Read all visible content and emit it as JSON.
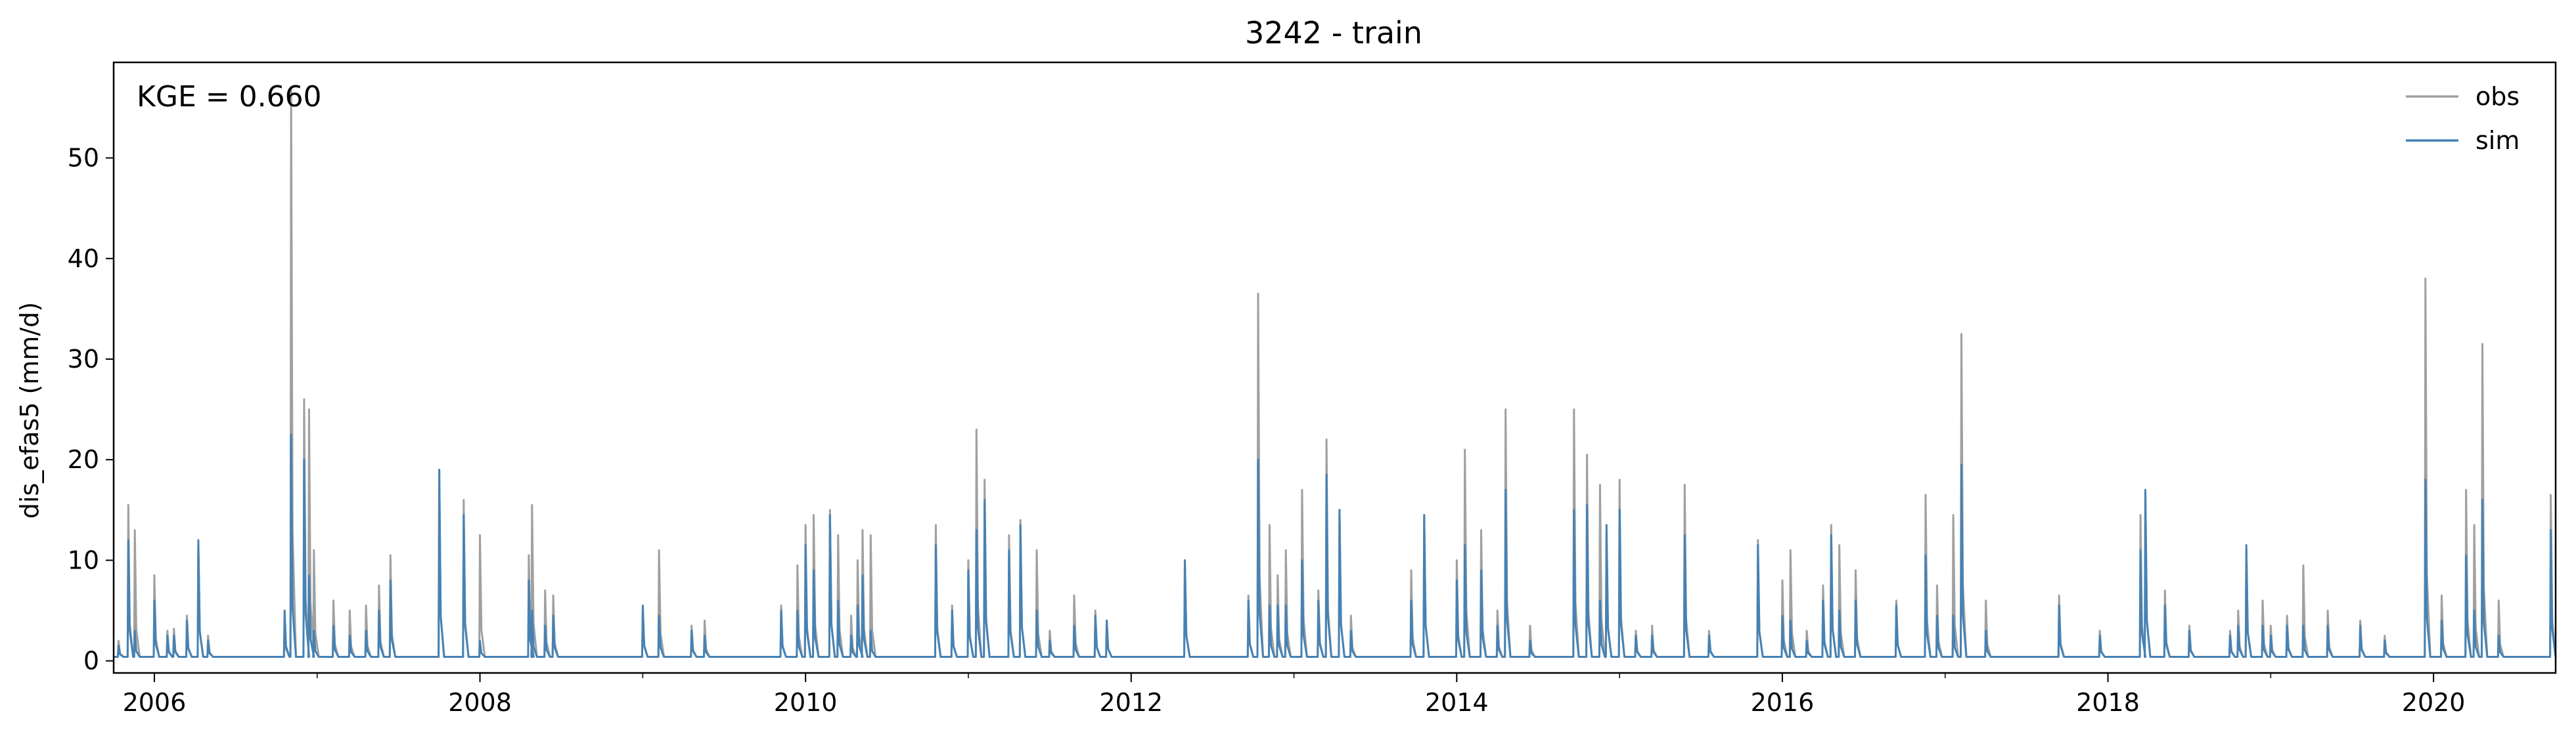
{
  "chart_data": {
    "type": "line",
    "title": "3242 - train",
    "xlabel": "",
    "ylabel": "dis_efas5 (mm/d)",
    "xlim": [
      2005.75,
      2020.75
    ],
    "ylim": [
      -1.2,
      59.5
    ],
    "xticks": [
      2006,
      2008,
      2010,
      2012,
      2014,
      2016,
      2018,
      2020
    ],
    "xtick_labels": [
      "2006",
      "2008",
      "2010",
      "2012",
      "2014",
      "2016",
      "2018",
      "2020"
    ],
    "yticks": [
      0,
      10,
      20,
      30,
      40,
      50
    ],
    "ytick_labels": [
      "0",
      "10",
      "20",
      "30",
      "40",
      "50"
    ],
    "annotation": "KGE = 0.660",
    "legend": {
      "position": "top-right",
      "entries": [
        "obs",
        "sim"
      ]
    },
    "baseline": 0.4,
    "series": [
      {
        "name": "obs",
        "color": "#a0a0a0",
        "peaks": [
          [
            2005.78,
            2.0
          ],
          [
            2005.84,
            15.5
          ],
          [
            2005.88,
            13.0
          ],
          [
            2006.0,
            8.5
          ],
          [
            2006.08,
            3.0
          ],
          [
            2006.12,
            3.2
          ],
          [
            2006.2,
            4.5
          ],
          [
            2006.27,
            11.5
          ],
          [
            2006.33,
            2.5
          ],
          [
            2006.8,
            4.0
          ],
          [
            2006.84,
            57.0
          ],
          [
            2006.92,
            26.0
          ],
          [
            2006.95,
            25.0
          ],
          [
            2006.98,
            11.0
          ],
          [
            2007.1,
            6.0
          ],
          [
            2007.2,
            5.0
          ],
          [
            2007.3,
            5.5
          ],
          [
            2007.38,
            7.5
          ],
          [
            2007.45,
            10.5
          ],
          [
            2007.75,
            19.0
          ],
          [
            2007.9,
            16.0
          ],
          [
            2008.0,
            12.5
          ],
          [
            2008.3,
            10.5
          ],
          [
            2008.32,
            15.5
          ],
          [
            2008.4,
            7.0
          ],
          [
            2008.45,
            6.5
          ],
          [
            2009.0,
            5.0
          ],
          [
            2009.1,
            11.0
          ],
          [
            2009.3,
            3.5
          ],
          [
            2009.38,
            4.0
          ],
          [
            2009.85,
            5.5
          ],
          [
            2009.95,
            9.5
          ],
          [
            2010.0,
            13.5
          ],
          [
            2010.05,
            14.5
          ],
          [
            2010.15,
            15.0
          ],
          [
            2010.2,
            12.5
          ],
          [
            2010.28,
            4.5
          ],
          [
            2010.32,
            10.0
          ],
          [
            2010.35,
            13.0
          ],
          [
            2010.4,
            12.5
          ],
          [
            2010.8,
            13.5
          ],
          [
            2010.9,
            5.5
          ],
          [
            2011.0,
            10.0
          ],
          [
            2011.05,
            23.0
          ],
          [
            2011.1,
            18.0
          ],
          [
            2011.25,
            12.5
          ],
          [
            2011.32,
            14.0
          ],
          [
            2011.42,
            11.0
          ],
          [
            2011.5,
            3.0
          ],
          [
            2011.65,
            6.5
          ],
          [
            2011.78,
            5.0
          ],
          [
            2011.85,
            4.0
          ],
          [
            2012.33,
            10.0
          ],
          [
            2012.72,
            6.5
          ],
          [
            2012.78,
            36.5
          ],
          [
            2012.85,
            13.5
          ],
          [
            2012.9,
            8.5
          ],
          [
            2012.95,
            11.0
          ],
          [
            2013.05,
            17.0
          ],
          [
            2013.15,
            7.0
          ],
          [
            2013.2,
            22.0
          ],
          [
            2013.28,
            15.0
          ],
          [
            2013.35,
            4.5
          ],
          [
            2013.72,
            9.0
          ],
          [
            2013.8,
            14.5
          ],
          [
            2014.0,
            10.0
          ],
          [
            2014.05,
            21.0
          ],
          [
            2014.15,
            13.0
          ],
          [
            2014.25,
            5.0
          ],
          [
            2014.3,
            25.0
          ],
          [
            2014.45,
            3.5
          ],
          [
            2014.72,
            25.0
          ],
          [
            2014.8,
            20.5
          ],
          [
            2014.88,
            17.5
          ],
          [
            2014.92,
            12.5
          ],
          [
            2015.0,
            18.0
          ],
          [
            2015.1,
            3.0
          ],
          [
            2015.2,
            3.5
          ],
          [
            2015.4,
            17.5
          ],
          [
            2015.55,
            3.0
          ],
          [
            2015.85,
            12.0
          ],
          [
            2016.0,
            8.0
          ],
          [
            2016.05,
            11.0
          ],
          [
            2016.15,
            3.0
          ],
          [
            2016.25,
            7.5
          ],
          [
            2016.3,
            13.5
          ],
          [
            2016.35,
            11.5
          ],
          [
            2016.45,
            9.0
          ],
          [
            2016.7,
            6.0
          ],
          [
            2016.88,
            16.5
          ],
          [
            2016.95,
            7.5
          ],
          [
            2017.05,
            14.5
          ],
          [
            2017.1,
            32.5
          ],
          [
            2017.25,
            6.0
          ],
          [
            2017.7,
            6.5
          ],
          [
            2017.95,
            3.0
          ],
          [
            2018.2,
            14.5
          ],
          [
            2018.23,
            16.5
          ],
          [
            2018.35,
            7.0
          ],
          [
            2018.5,
            3.5
          ],
          [
            2018.75,
            3.0
          ],
          [
            2018.8,
            5.0
          ],
          [
            2018.85,
            11.0
          ],
          [
            2018.95,
            6.0
          ],
          [
            2019.0,
            3.5
          ],
          [
            2019.1,
            4.5
          ],
          [
            2019.2,
            9.5
          ],
          [
            2019.35,
            5.0
          ],
          [
            2019.55,
            4.0
          ],
          [
            2019.7,
            2.5
          ],
          [
            2019.95,
            38.0
          ],
          [
            2020.05,
            6.5
          ],
          [
            2020.2,
            17.0
          ],
          [
            2020.25,
            13.5
          ],
          [
            2020.3,
            31.5
          ],
          [
            2020.4,
            6.0
          ],
          [
            2020.72,
            16.5
          ]
        ]
      },
      {
        "name": "sim",
        "color": "#4682b4",
        "peaks": [
          [
            2005.78,
            1.5
          ],
          [
            2005.84,
            12.0
          ],
          [
            2005.88,
            3.0
          ],
          [
            2006.0,
            6.0
          ],
          [
            2006.08,
            2.5
          ],
          [
            2006.12,
            2.5
          ],
          [
            2006.2,
            4.0
          ],
          [
            2006.27,
            12.0
          ],
          [
            2006.33,
            2.0
          ],
          [
            2006.8,
            5.0
          ],
          [
            2006.84,
            22.5
          ],
          [
            2006.92,
            20.0
          ],
          [
            2006.95,
            8.5
          ],
          [
            2006.98,
            3.0
          ],
          [
            2007.1,
            3.5
          ],
          [
            2007.2,
            2.5
          ],
          [
            2007.3,
            3.0
          ],
          [
            2007.38,
            5.0
          ],
          [
            2007.45,
            8.0
          ],
          [
            2007.75,
            19.0
          ],
          [
            2007.9,
            14.5
          ],
          [
            2008.0,
            2.0
          ],
          [
            2008.3,
            8.0
          ],
          [
            2008.32,
            5.0
          ],
          [
            2008.4,
            3.5
          ],
          [
            2008.45,
            4.5
          ],
          [
            2009.0,
            5.5
          ],
          [
            2009.1,
            4.5
          ],
          [
            2009.3,
            3.0
          ],
          [
            2009.38,
            2.5
          ],
          [
            2009.85,
            5.0
          ],
          [
            2009.95,
            5.0
          ],
          [
            2010.0,
            11.5
          ],
          [
            2010.05,
            9.0
          ],
          [
            2010.15,
            14.5
          ],
          [
            2010.2,
            6.0
          ],
          [
            2010.28,
            2.5
          ],
          [
            2010.32,
            5.5
          ],
          [
            2010.35,
            8.5
          ],
          [
            2010.4,
            3.0
          ],
          [
            2010.8,
            11.5
          ],
          [
            2010.9,
            5.0
          ],
          [
            2011.0,
            9.0
          ],
          [
            2011.05,
            13.0
          ],
          [
            2011.1,
            16.0
          ],
          [
            2011.25,
            11.0
          ],
          [
            2011.32,
            13.5
          ],
          [
            2011.42,
            5.0
          ],
          [
            2011.5,
            2.0
          ],
          [
            2011.65,
            3.5
          ],
          [
            2011.78,
            4.5
          ],
          [
            2011.85,
            4.0
          ],
          [
            2012.33,
            10.0
          ],
          [
            2012.72,
            6.0
          ],
          [
            2012.78,
            20.0
          ],
          [
            2012.85,
            5.5
          ],
          [
            2012.9,
            5.5
          ],
          [
            2012.95,
            5.5
          ],
          [
            2013.05,
            10.0
          ],
          [
            2013.15,
            6.0
          ],
          [
            2013.2,
            18.5
          ],
          [
            2013.28,
            15.0
          ],
          [
            2013.35,
            3.0
          ],
          [
            2013.72,
            6.0
          ],
          [
            2013.8,
            14.5
          ],
          [
            2014.0,
            8.0
          ],
          [
            2014.05,
            11.5
          ],
          [
            2014.15,
            9.0
          ],
          [
            2014.25,
            3.5
          ],
          [
            2014.3,
            17.0
          ],
          [
            2014.45,
            2.0
          ],
          [
            2014.72,
            15.0
          ],
          [
            2014.8,
            15.5
          ],
          [
            2014.88,
            6.0
          ],
          [
            2014.92,
            13.5
          ],
          [
            2015.0,
            15.0
          ],
          [
            2015.1,
            2.5
          ],
          [
            2015.2,
            2.5
          ],
          [
            2015.4,
            12.5
          ],
          [
            2015.55,
            2.5
          ],
          [
            2015.85,
            11.5
          ],
          [
            2016.0,
            4.5
          ],
          [
            2016.05,
            4.0
          ],
          [
            2016.15,
            2.0
          ],
          [
            2016.25,
            6.0
          ],
          [
            2016.3,
            12.5
          ],
          [
            2016.35,
            5.0
          ],
          [
            2016.45,
            6.0
          ],
          [
            2016.7,
            5.5
          ],
          [
            2016.88,
            10.5
          ],
          [
            2016.95,
            4.5
          ],
          [
            2017.05,
            4.5
          ],
          [
            2017.1,
            19.5
          ],
          [
            2017.25,
            3.0
          ],
          [
            2017.7,
            5.5
          ],
          [
            2017.95,
            2.5
          ],
          [
            2018.2,
            11.0
          ],
          [
            2018.23,
            17.0
          ],
          [
            2018.35,
            5.5
          ],
          [
            2018.5,
            3.0
          ],
          [
            2018.75,
            2.5
          ],
          [
            2018.8,
            3.5
          ],
          [
            2018.85,
            11.5
          ],
          [
            2018.95,
            3.5
          ],
          [
            2019.0,
            2.5
          ],
          [
            2019.1,
            3.5
          ],
          [
            2019.2,
            3.5
          ],
          [
            2019.35,
            3.5
          ],
          [
            2019.55,
            3.5
          ],
          [
            2019.7,
            2.0
          ],
          [
            2019.95,
            18.0
          ],
          [
            2020.05,
            4.0
          ],
          [
            2020.2,
            10.5
          ],
          [
            2020.25,
            5.0
          ],
          [
            2020.3,
            16.0
          ],
          [
            2020.4,
            2.5
          ],
          [
            2020.72,
            13.0
          ]
        ]
      }
    ]
  }
}
